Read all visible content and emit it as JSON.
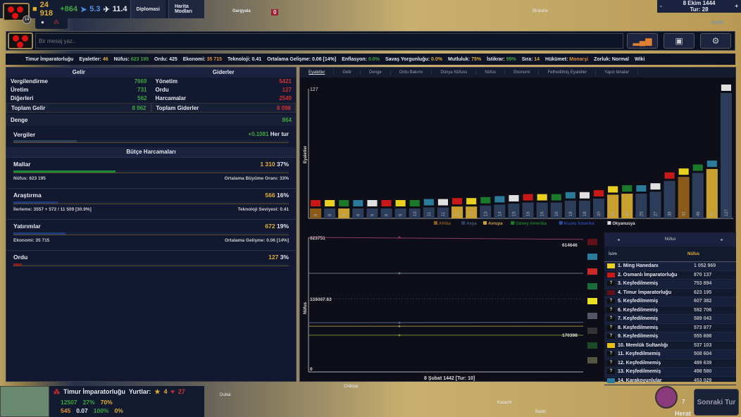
{
  "topbar": {
    "gold": "24 918",
    "income": "+864",
    "stat1": "5.3",
    "stat2": "11.4",
    "tabs": [
      "Diplomasi",
      "Harita Modları"
    ],
    "level": "14"
  },
  "map_labels": [
    "Gargyala",
    "Binbahe",
    "Chibbar",
    "Karachi",
    "Badin",
    "Dubai"
  ],
  "map_unit_count": "0",
  "date": {
    "date": "8 Ekim 1444",
    "turn": "Tur: 28",
    "minus": "-",
    "plus": "+"
  },
  "research_pct": "30.9%",
  "message": {
    "placeholder": "Bir mesaj yaz.."
  },
  "stats": [
    {
      "label": "Timur İmparatorluğu",
      "value": "",
      "c": ""
    },
    {
      "label": "Eyaletler:",
      "value": "46",
      "c": "y"
    },
    {
      "label": "Nüfus:",
      "value": "623 195",
      "c": "g"
    },
    {
      "label": "Ordu:",
      "value": "425",
      "c": ""
    },
    {
      "label": "Ekonomi:",
      "value": "35 715",
      "c": "o"
    },
    {
      "label": "Teknoloji:",
      "value": "0.41",
      "c": ""
    },
    {
      "label": "Ortalama Gelişme:",
      "value": "0.06 [14%]",
      "c": ""
    },
    {
      "label": "Enflasyon:",
      "value": "0.0%",
      "c": "g"
    },
    {
      "label": "Savaş Yorgunluğu:",
      "value": "0.0%",
      "c": "y"
    },
    {
      "label": "Mutluluk:",
      "value": "75%",
      "c": "y"
    },
    {
      "label": "İstikrar:",
      "value": "99%",
      "c": "g"
    },
    {
      "label": "Sıra:",
      "value": "14",
      "c": "y"
    },
    {
      "label": "Hükümet:",
      "value": "Monarşi",
      "c": "o"
    },
    {
      "label": "Zorluk:",
      "value": "Normal",
      "c": ""
    },
    {
      "label": "Wiki",
      "value": "",
      "c": ""
    }
  ],
  "budget": {
    "income_title": "Gelir",
    "expense_title": "Giderler",
    "income": [
      {
        "l": "Vergilendirme",
        "v": "7669"
      },
      {
        "l": "Üretim",
        "v": "731"
      },
      {
        "l": "Diğerleri",
        "v": "562"
      }
    ],
    "expenses": [
      {
        "l": "Yönetim",
        "v": "5421"
      },
      {
        "l": "Ordu",
        "v": "127"
      },
      {
        "l": "Harcamalar",
        "v": "2549"
      }
    ],
    "total_income_label": "Toplam Gelir",
    "total_income": "8 962",
    "total_expense_label": "Toplam Giderler",
    "total_expense": "8 098",
    "balance_label": "Denge",
    "balance": "864",
    "taxes_label": "Vergiler",
    "taxes_rate": "+0.1081",
    "taxes_per": "Her tur",
    "taxes_fill": 0.23,
    "spending_title": "Bütçe Harcamaları",
    "sections": [
      {
        "name": "Mallar",
        "amount": "1 310",
        "pct": "37%",
        "fill": 0.37,
        "color": "#1a8a3a",
        "sub_l": "Nüfus: 623 195",
        "sub_r": "Ortalama Büyüme Oranı: 33%"
      },
      {
        "name": "Araştırma",
        "amount": "566",
        "pct": "16%",
        "fill": 0.16,
        "color": "#1e3c7a",
        "sub_l": "İlerleme: 3557 + 572 / 11 509 [30.9%]",
        "sub_r": "Teknoloji Seviyesi: 0.41"
      },
      {
        "name": "Yatırımlar",
        "amount": "672",
        "pct": "19%",
        "fill": 0.19,
        "color": "#1e3c7a",
        "sub_l": "Ekonomi: 35 715",
        "sub_r": "Ortalama Gelişme: 0.06 [14%]"
      },
      {
        "name": "Ordu",
        "amount": "127",
        "pct": "3%",
        "fill": 0.03,
        "color": "#8a1a1a",
        "sub_l": "",
        "sub_r": ""
      }
    ]
  },
  "chart_tabs": [
    "Eyaletler",
    "Gelir",
    "Denge",
    "Ordu Bakımı",
    "Dünya Nüfusu",
    "Nüfus",
    "Ekonomi",
    "Fethedilmiş Eyaletler",
    "Yapılı binalar"
  ],
  "chart_data": [
    {
      "type": "bar",
      "ylabel": "Eyaletler",
      "ylim": [
        0,
        127
      ],
      "ymax_label": "127",
      "values": [
        8,
        8,
        8,
        9,
        9,
        9,
        9,
        10,
        11,
        11,
        12,
        12,
        13,
        14,
        15,
        16,
        16,
        16,
        18,
        18,
        20,
        24,
        25,
        25,
        27,
        38,
        42,
        46,
        50,
        127
      ],
      "regions": [
        "Afrika",
        "Asya",
        "Avrupa",
        "Asya",
        "Asya",
        "Asya",
        "Asya",
        "Asya",
        "Asya",
        "Asya",
        "Avrupa",
        "Avrupa",
        "Asya",
        "Asya",
        "Asya",
        "Asya",
        "Asya",
        "Asya",
        "Asya",
        "Asya",
        "Asya",
        "Avrupa",
        "Avrupa",
        "Asya",
        "Asya",
        "Asya",
        "Afrika",
        "Asya",
        "Avrupa",
        "Asya"
      ],
      "legend": [
        {
          "name": "Afrika",
          "color": "#8a5a1a"
        },
        {
          "name": "Asya",
          "color": "#2b3d58"
        },
        {
          "name": "Avrupa",
          "color": "#c8a030"
        },
        {
          "name": "Güney Amerika",
          "color": "#1a7a2a"
        },
        {
          "name": "Kuzey Amerika",
          "color": "#2a4aa0"
        },
        {
          "name": "Okyanusya",
          "color": "#dddddd"
        }
      ]
    },
    {
      "type": "line",
      "ylabel": "Nüfus",
      "ylim": [
        0,
        623751
      ],
      "y_labels": [
        "623751",
        "339067.63",
        "0"
      ],
      "xlabel": "8 Şubat 1442 [Tur: 10]",
      "series": [
        {
          "start": 623751,
          "end": 614646,
          "color": "#8a3a5a",
          "end_label": "614646"
        },
        {
          "start": 457000,
          "end": 457000,
          "color": "#667788"
        },
        {
          "start": 228000,
          "end": 230000,
          "color": "#556688"
        },
        {
          "start": 212000,
          "end": 212000,
          "color": "#998844"
        },
        {
          "start": 170398,
          "end": 170398,
          "color": "#778833",
          "end_label": "170398"
        }
      ]
    }
  ],
  "ranking": {
    "title": "Nüfus",
    "prev": "◂",
    "next": "▸",
    "col_name": "İsim",
    "col_value": "Nüfus",
    "rows": [
      {
        "n": "1. Ming Hanedanı",
        "v": "1 052 969",
        "flag": "#e8d020"
      },
      {
        "n": "2. Osmanlı İmparatorluğu",
        "v": "870 137",
        "flag": "#c81818"
      },
      {
        "n": "3. Keşfedilmemiş",
        "v": "753 894",
        "flag": "?"
      },
      {
        "n": "4. Timur İmparatorluğu",
        "v": "623 195",
        "flag": "#601018"
      },
      {
        "n": "5. Keşfedilmemiş",
        "v": "607 382",
        "flag": "?"
      },
      {
        "n": "6. Keşfedilmemiş",
        "v": "592 706",
        "flag": "?"
      },
      {
        "n": "7. Keşfedilmemiş",
        "v": "589 043",
        "flag": "?"
      },
      {
        "n": "8. Keşfedilmemiş",
        "v": "573 977",
        "flag": "?"
      },
      {
        "n": "9. Keşfedilmemiş",
        "v": "555 698",
        "flag": "?"
      },
      {
        "n": "10. Memlük Sultanlığı",
        "v": "537 103",
        "flag": "#e8c010"
      },
      {
        "n": "11. Keşfedilmemiş",
        "v": "508 604",
        "flag": "?"
      },
      {
        "n": "12. Keşfedilmemiş",
        "v": "499 639",
        "flag": "?"
      },
      {
        "n": "13. Keşfedilmemiş",
        "v": "498 580",
        "flag": "?"
      },
      {
        "n": "14. Karakoyunlular",
        "v": "453 029",
        "flag": "#2a7a9a"
      }
    ]
  },
  "bottom": {
    "country": "Timur İmparatorluğu",
    "vassals": "Yurtlar:",
    "stars": "4",
    "rank": "27",
    "pop": "12507",
    "growth": "27%",
    "happiness": "70%",
    "economy": "545",
    "dev": "0.07",
    "stability": "100%",
    "unrest": "0%"
  },
  "city": {
    "name": "Herat",
    "count": "7",
    "next_turn": "Sonraki Tur"
  }
}
